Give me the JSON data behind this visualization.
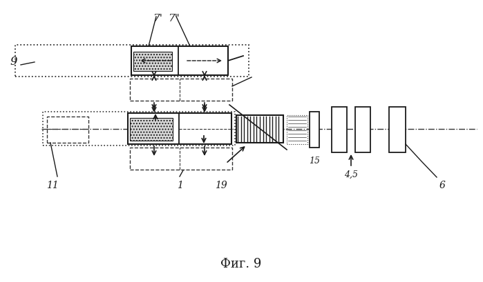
{
  "bg_color": "#ffffff",
  "title": "Фиг. 9",
  "title_fontsize": 13,
  "labels": {
    "7prime": "7'",
    "7dprime": "7\"",
    "9": "9",
    "11": "11",
    "1": "1",
    "19": "19",
    "15": "15",
    "45": "4,5",
    "6": "6"
  },
  "lc": "#1a1a1a",
  "dc": "#333333"
}
